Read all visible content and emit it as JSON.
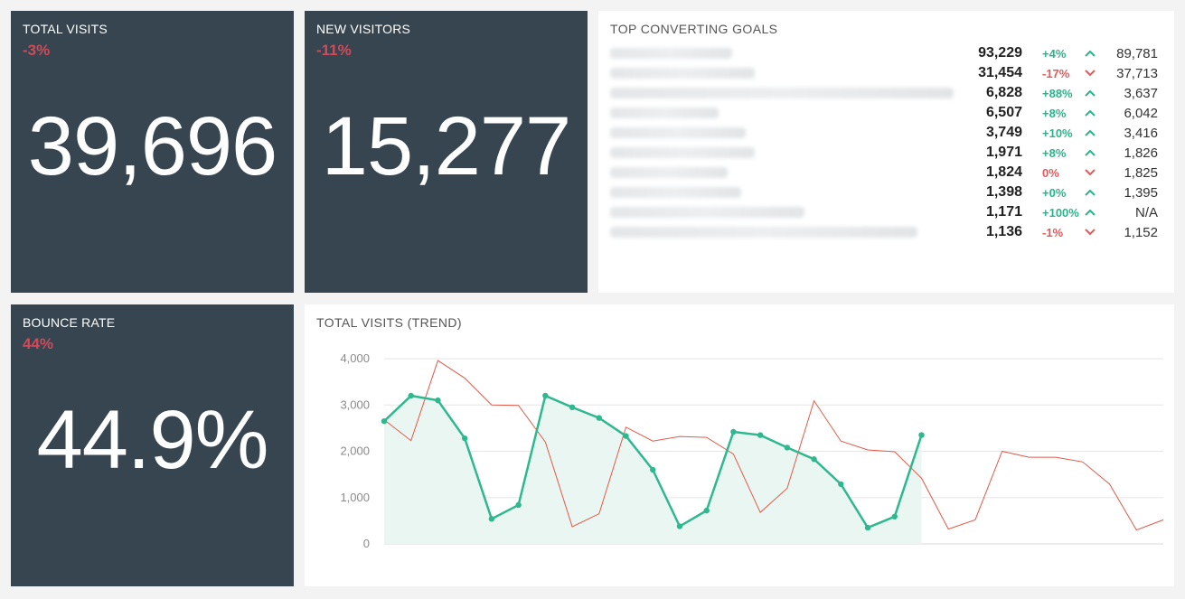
{
  "tiles": {
    "total_visits": {
      "title": "TOTAL VISITS",
      "delta": "-3%",
      "value": "39,696"
    },
    "new_visitors": {
      "title": "NEW VISITORS",
      "delta": "-11%",
      "value": "15,277"
    },
    "bounce_rate": {
      "title": "BOUNCE RATE",
      "delta": "44%",
      "value": "44.9%"
    },
    "top_goals": {
      "title": "TOP CONVERTING GOALS",
      "rows": [
        {
          "value": "93,229",
          "pct": "+4%",
          "dir": "up",
          "prev": "89,781",
          "name_width": 135
        },
        {
          "value": "31,454",
          "pct": "-17%",
          "dir": "down",
          "prev": "37,713",
          "name_width": 160
        },
        {
          "value": "6,828",
          "pct": "+88%",
          "dir": "up",
          "prev": "3,637",
          "name_width": 380
        },
        {
          "value": "6,507",
          "pct": "+8%",
          "dir": "up",
          "prev": "6,042",
          "name_width": 120
        },
        {
          "value": "3,749",
          "pct": "+10%",
          "dir": "up",
          "prev": "3,416",
          "name_width": 150
        },
        {
          "value": "1,971",
          "pct": "+8%",
          "dir": "up",
          "prev": "1,826",
          "name_width": 160
        },
        {
          "value": "1,824",
          "pct": "0%",
          "dir": "down",
          "prev": "1,825",
          "name_width": 130
        },
        {
          "value": "1,398",
          "pct": "+0%",
          "dir": "up",
          "prev": "1,395",
          "name_width": 145
        },
        {
          "value": "1,171",
          "pct": "+100%",
          "dir": "up",
          "prev": "N/A",
          "name_width": 215
        },
        {
          "value": "1,136",
          "pct": "-1%",
          "dir": "down",
          "prev": "1,152",
          "name_width": 340
        }
      ]
    },
    "trend": {
      "title": "TOTAL VISITS (TREND)"
    }
  },
  "colors": {
    "tile_dark": "#364550",
    "negative": "#d14a5a",
    "positive": "#29b58c",
    "trend_current": "#2fb88f",
    "trend_previous": "#e05a4a"
  },
  "chart_data": {
    "type": "line",
    "title": "TOTAL VISITS (TREND)",
    "ylim": [
      0,
      4000
    ],
    "yticks": [
      "0",
      "1,000",
      "2,000",
      "3,000",
      "4,000"
    ],
    "grid": true,
    "series": [
      {
        "style": "area-with-markers",
        "color": "#2fb88f",
        "values": [
          2650,
          3200,
          3100,
          2280,
          540,
          840,
          3200,
          2950,
          2720,
          2330,
          1600,
          380,
          720,
          2420,
          2350,
          2080,
          1830,
          1290,
          350,
          590,
          2350
        ]
      },
      {
        "style": "thin-line",
        "color": "#e05a4a",
        "values": [
          2680,
          2230,
          3960,
          3580,
          3000,
          2990,
          2200,
          370,
          650,
          2520,
          2220,
          2320,
          2300,
          1940,
          680,
          1200,
          3090,
          2220,
          2030,
          1990,
          1420,
          320,
          520,
          2000,
          1870,
          1870,
          1770,
          1290,
          300,
          520
        ]
      }
    ]
  }
}
